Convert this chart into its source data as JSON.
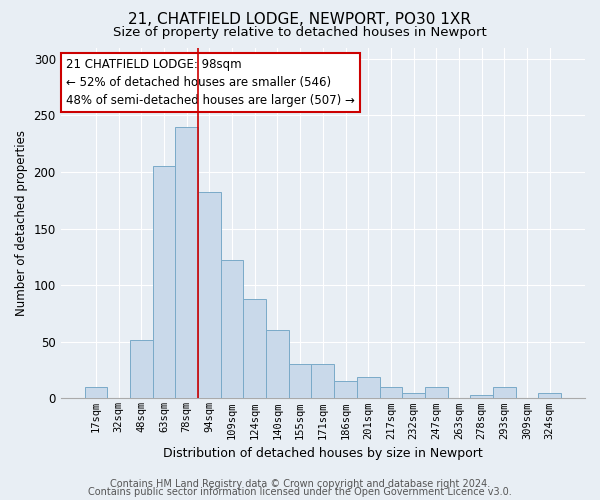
{
  "title": "21, CHATFIELD LODGE, NEWPORT, PO30 1XR",
  "subtitle": "Size of property relative to detached houses in Newport",
  "xlabel": "Distribution of detached houses by size in Newport",
  "ylabel": "Number of detached properties",
  "bar_labels": [
    "17sqm",
    "32sqm",
    "48sqm",
    "63sqm",
    "78sqm",
    "94sqm",
    "109sqm",
    "124sqm",
    "140sqm",
    "155sqm",
    "171sqm",
    "186sqm",
    "201sqm",
    "217sqm",
    "232sqm",
    "247sqm",
    "263sqm",
    "278sqm",
    "293sqm",
    "309sqm",
    "324sqm"
  ],
  "bar_values": [
    10,
    0,
    52,
    205,
    240,
    182,
    122,
    88,
    60,
    30,
    30,
    15,
    19,
    10,
    5,
    10,
    0,
    3,
    10,
    0,
    5
  ],
  "bar_color": "#c9d9ea",
  "bar_edge_color": "#7aaac8",
  "vline_x_index": 5,
  "vline_color": "#cc0000",
  "annotation_box_text": "21 CHATFIELD LODGE: 98sqm\n← 52% of detached houses are smaller (546)\n48% of semi-detached houses are larger (507) →",
  "annotation_box_facecolor": "#ffffff",
  "annotation_box_edgecolor": "#cc0000",
  "ylim": [
    0,
    310
  ],
  "yticks": [
    0,
    50,
    100,
    150,
    200,
    250,
    300
  ],
  "footer_line1": "Contains HM Land Registry data © Crown copyright and database right 2024.",
  "footer_line2": "Contains public sector information licensed under the Open Government Licence v3.0.",
  "fig_bg_color": "#e8eef4",
  "plot_bg_color": "#e8eef4",
  "grid_color": "#ffffff",
  "title_fontsize": 11,
  "subtitle_fontsize": 9.5,
  "annotation_fontsize": 8.5,
  "tick_fontsize": 7.5,
  "ylabel_fontsize": 8.5,
  "xlabel_fontsize": 9,
  "footer_fontsize": 7
}
